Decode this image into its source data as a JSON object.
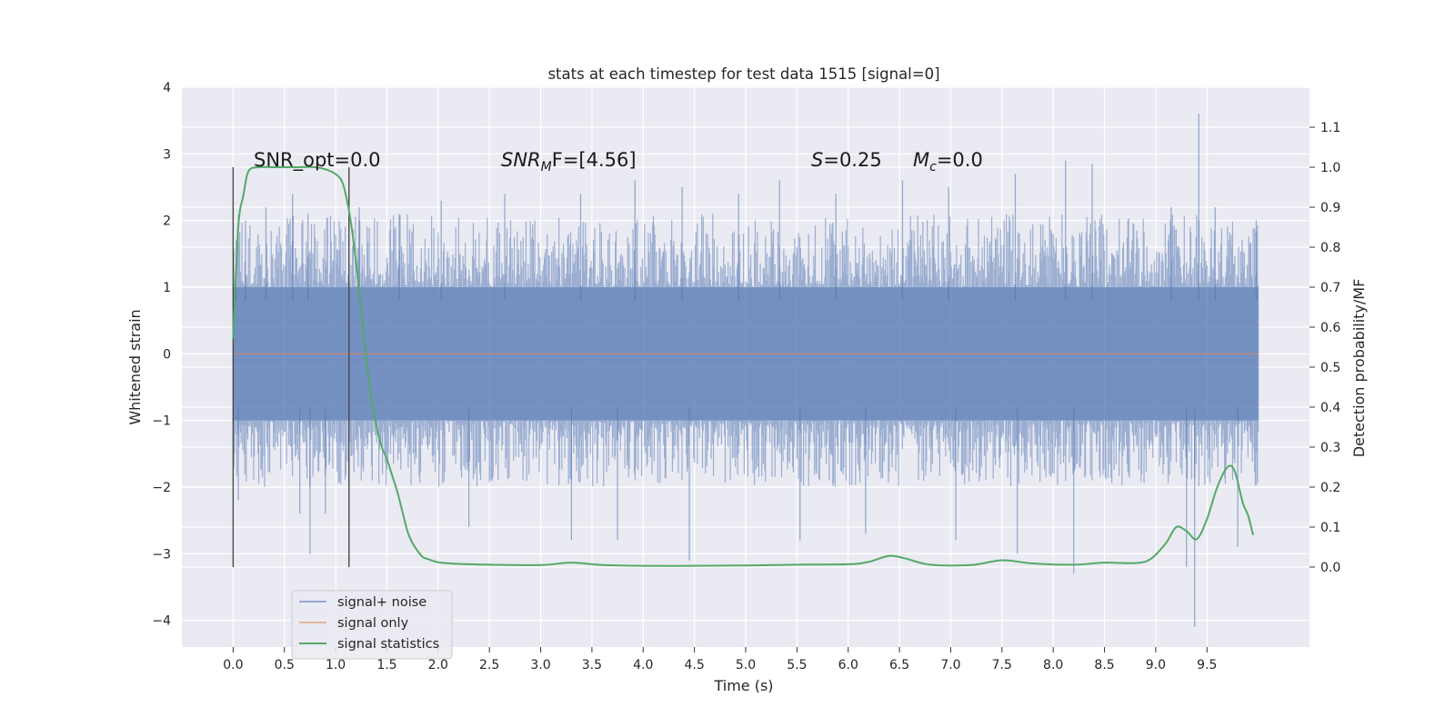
{
  "chart_data": {
    "type": "line",
    "title": "stats at each timestep for test data 1515 [signal=0]",
    "xlabel": "Time (s)",
    "ylabel": "Whitened strain",
    "ylabel_right": "Detection probability/MF",
    "xlim": [
      -0.5,
      10.5
    ],
    "ylim": [
      -4.4,
      4.0
    ],
    "ylim_right": [
      -0.2,
      1.2
    ],
    "x_ticks": [
      "0.0",
      "0.5",
      "1.0",
      "1.5",
      "2.0",
      "2.5",
      "3.0",
      "3.5",
      "4.0",
      "4.5",
      "5.0",
      "5.5",
      "6.0",
      "6.5",
      "7.0",
      "7.5",
      "8.0",
      "8.5",
      "9.0",
      "9.5"
    ],
    "y_ticks": [
      "4",
      "3",
      "2",
      "1",
      "0",
      "−1",
      "−2",
      "−3",
      "−4"
    ],
    "y_ticks_right": [
      "1.1",
      "1.0",
      "0.9",
      "0.8",
      "0.7",
      "0.6",
      "0.5",
      "0.4",
      "0.3",
      "0.2",
      "0.1",
      "0.0"
    ],
    "grid": true,
    "background": "#EAEAF2",
    "legend_position": "lower-left",
    "legend": [
      {
        "label": "signal+ noise",
        "color": "#4C72B0"
      },
      {
        "label": "signal only",
        "color": "#DD8452"
      },
      {
        "label": "signal statistics",
        "color": "#55A868"
      }
    ],
    "annotations": {
      "snr_opt": "SNR_opt=0.0",
      "snr_mf_base": "SNR",
      "snr_mf_sub": "M",
      "snr_mf_tail": "F=[4.56]",
      "s_base": "S",
      "s_tail": "=0.25",
      "mc_base": "M",
      "mc_sub": "c",
      "mc_tail": "=0.0"
    },
    "vertical_lines_x": [
      0.0,
      1.13
    ],
    "series": [
      {
        "name": "signal+ noise",
        "color": "#4C72B0",
        "x_range": [
          0.0,
          10.0
        ],
        "typical_envelope": [
          -1.4,
          1.6
        ],
        "peaks": [
          {
            "x": 0.03,
            "y": 1.7
          },
          {
            "x": 0.12,
            "y": 2.0
          },
          {
            "x": 0.32,
            "y": 2.2
          },
          {
            "x": 0.58,
            "y": 2.4
          },
          {
            "x": 0.73,
            "y": 2.1
          },
          {
            "x": 1.23,
            "y": 2.2
          },
          {
            "x": 1.62,
            "y": 2.1
          },
          {
            "x": 2.03,
            "y": 2.3
          },
          {
            "x": 2.65,
            "y": 2.4
          },
          {
            "x": 3.39,
            "y": 2.4
          },
          {
            "x": 3.92,
            "y": 2.6
          },
          {
            "x": 4.38,
            "y": 2.5
          },
          {
            "x": 4.93,
            "y": 2.4
          },
          {
            "x": 5.33,
            "y": 2.6
          },
          {
            "x": 5.88,
            "y": 2.4
          },
          {
            "x": 6.53,
            "y": 2.6
          },
          {
            "x": 6.98,
            "y": 2.5
          },
          {
            "x": 7.63,
            "y": 2.7
          },
          {
            "x": 8.12,
            "y": 2.9
          },
          {
            "x": 8.38,
            "y": 2.85
          },
          {
            "x": 9.15,
            "y": 2.2
          },
          {
            "x": 9.42,
            "y": 3.6
          },
          {
            "x": 9.58,
            "y": 2.2
          },
          {
            "x": 9.98,
            "y": 2.0
          }
        ],
        "troughs": [
          {
            "x": 0.05,
            "y": -2.2
          },
          {
            "x": 0.65,
            "y": -2.4
          },
          {
            "x": 0.75,
            "y": -3.0
          },
          {
            "x": 0.9,
            "y": -2.4
          },
          {
            "x": 2.3,
            "y": -2.6
          },
          {
            "x": 3.3,
            "y": -2.8
          },
          {
            "x": 3.75,
            "y": -2.8
          },
          {
            "x": 4.45,
            "y": -3.1
          },
          {
            "x": 5.53,
            "y": -2.8
          },
          {
            "x": 6.17,
            "y": -2.7
          },
          {
            "x": 7.05,
            "y": -2.8
          },
          {
            "x": 7.65,
            "y": -3.0
          },
          {
            "x": 8.2,
            "y": -3.3
          },
          {
            "x": 9.3,
            "y": -3.2
          },
          {
            "x": 9.38,
            "y": -4.1
          },
          {
            "x": 9.8,
            "y": -2.9
          }
        ]
      },
      {
        "name": "signal only",
        "color": "#DD8452",
        "x": [
          0.0,
          10.0
        ],
        "y": [
          0.0,
          0.0
        ]
      },
      {
        "name": "signal statistics",
        "color": "#55A868",
        "axis": "right",
        "x": [
          0.0,
          0.05,
          0.1,
          0.15,
          0.25,
          0.4,
          0.6,
          0.8,
          0.95,
          1.05,
          1.1,
          1.15,
          1.2,
          1.25,
          1.3,
          1.35,
          1.4,
          1.45,
          1.5,
          1.55,
          1.6,
          1.65,
          1.7,
          1.75,
          1.8,
          1.85,
          1.9,
          2.0,
          2.2,
          2.5,
          3.0,
          3.3,
          3.6,
          4.0,
          4.5,
          5.0,
          5.5,
          6.0,
          6.2,
          6.4,
          6.55,
          6.8,
          7.2,
          7.5,
          7.8,
          8.2,
          8.5,
          8.8,
          8.95,
          9.1,
          9.2,
          9.3,
          9.4,
          9.5,
          9.6,
          9.7,
          9.77,
          9.85,
          9.9,
          9.95
        ],
        "y": [
          0.57,
          0.85,
          0.93,
          0.99,
          1.0,
          1.0,
          1.0,
          1.0,
          0.99,
          0.97,
          0.93,
          0.86,
          0.76,
          0.64,
          0.52,
          0.42,
          0.35,
          0.3,
          0.27,
          0.23,
          0.19,
          0.14,
          0.09,
          0.06,
          0.04,
          0.025,
          0.02,
          0.012,
          0.008,
          0.006,
          0.005,
          0.011,
          0.005,
          0.003,
          0.003,
          0.004,
          0.006,
          0.007,
          0.013,
          0.028,
          0.022,
          0.006,
          0.005,
          0.017,
          0.009,
          0.006,
          0.011,
          0.01,
          0.02,
          0.06,
          0.1,
          0.09,
          0.07,
          0.12,
          0.2,
          0.25,
          0.24,
          0.16,
          0.13,
          0.08
        ]
      }
    ]
  }
}
